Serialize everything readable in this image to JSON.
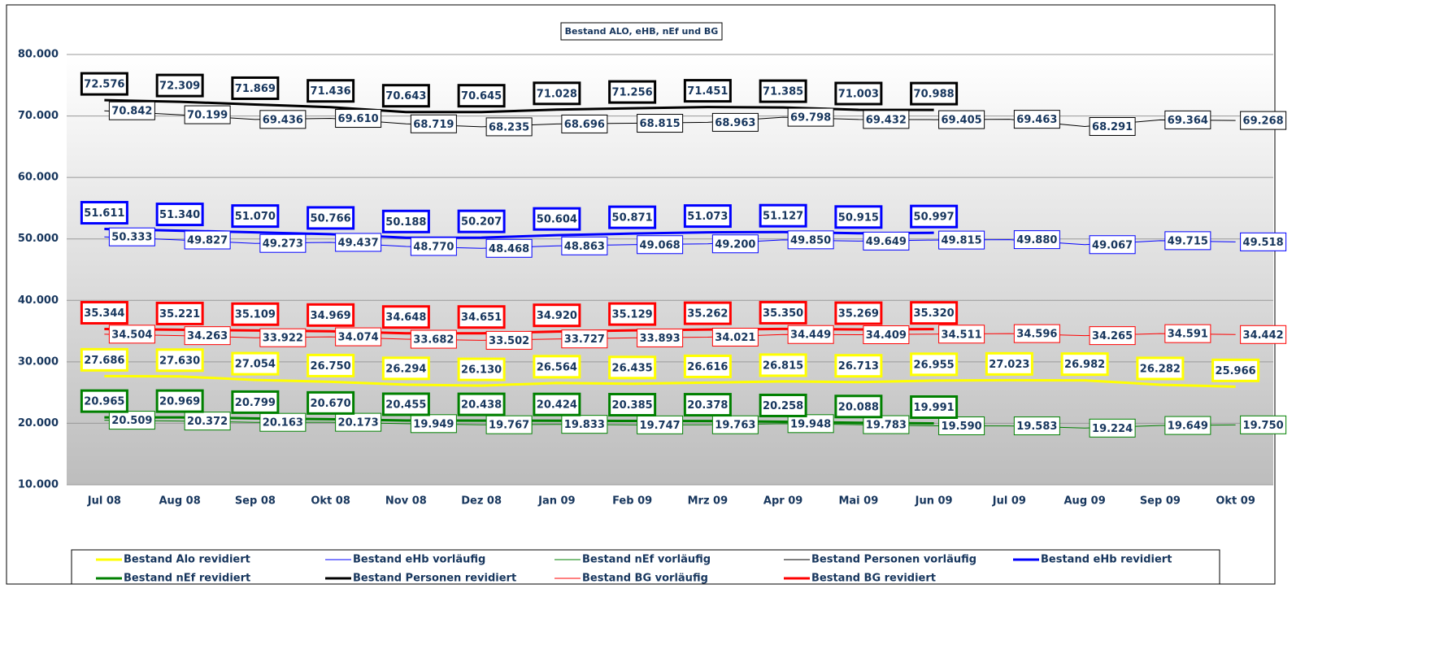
{
  "chart_data": {
    "type": "line",
    "title": "Bestand ALO, eHB, nEf und BG",
    "categories": [
      "Jul 08",
      "Aug 08",
      "Sep 08",
      "Okt 08",
      "Nov 08",
      "Dez 08",
      "Jan 09",
      "Feb 09",
      "Mrz 09",
      "Apr 09",
      "Mai 09",
      "Jun 09",
      "Jul 09",
      "Aug 09",
      "Sep 09",
      "Okt 09"
    ],
    "ylim": [
      10000,
      80000
    ],
    "yticks": [
      {
        "value": 10000,
        "label": "10.000"
      },
      {
        "value": 20000,
        "label": "20.000"
      },
      {
        "value": 30000,
        "label": "30.000"
      },
      {
        "value": 40000,
        "label": "40.000"
      },
      {
        "value": 50000,
        "label": "50.000"
      },
      {
        "value": 60000,
        "label": "60.000"
      },
      {
        "value": 70000,
        "label": "70.000"
      },
      {
        "value": 80000,
        "label": "80.000"
      }
    ],
    "grid": true,
    "series": [
      {
        "name": "Bestand Alo revidiert",
        "color": "#ffff00",
        "linewidth": 3,
        "values": [
          27686,
          27630,
          27054,
          26750,
          26294,
          26130,
          26564,
          26435,
          26616,
          26815,
          26713,
          26955,
          27023,
          26982,
          26282,
          25966
        ],
        "value_labels": [
          "27.686",
          "27.630",
          "27.054",
          "26.750",
          "26.294",
          "26.130",
          "26.564",
          "26.435",
          "26.616",
          "26.815",
          "26.713",
          "26.955",
          "27.023",
          "26.982",
          "26.282",
          "25.966"
        ]
      },
      {
        "name": "Bestand eHb vorläufig",
        "color": "#0000ff",
        "linewidth": 1,
        "values": [
          50333,
          49827,
          49273,
          49437,
          48770,
          48468,
          48863,
          49068,
          49200,
          49850,
          49649,
          49815,
          49880,
          49067,
          49715,
          49518
        ],
        "value_labels": [
          "50.333",
          "49.827",
          "49.273",
          "49.437",
          "48.770",
          "48.468",
          "48.863",
          "49.068",
          "49.200",
          "49.850",
          "49.649",
          "49.815",
          "49.880",
          "49.067",
          "49.715",
          "49.518"
        ]
      },
      {
        "name": "Bestand nEf vorläufig",
        "color": "#008000",
        "linewidth": 1,
        "values": [
          20509,
          20372,
          20163,
          20173,
          19949,
          19767,
          19833,
          19747,
          19763,
          19948,
          19783,
          19590,
          19583,
          19224,
          19649,
          19750
        ],
        "value_labels": [
          "20.509",
          "20.372",
          "20.163",
          "20.173",
          "19.949",
          "19.767",
          "19.833",
          "19.747",
          "19.763",
          "19.948",
          "19.783",
          "19.590",
          "19.583",
          "19.224",
          "19.649",
          "19.750"
        ]
      },
      {
        "name": "Bestand Personen vorläufig",
        "color": "#000000",
        "linewidth": 1,
        "values": [
          70842,
          70199,
          69436,
          69610,
          68719,
          68235,
          68696,
          68815,
          68963,
          69798,
          69432,
          69405,
          69463,
          68291,
          69364,
          69268
        ],
        "value_labels": [
          "70.842",
          "70.199",
          "69.436",
          "69.610",
          "68.719",
          "68.235",
          "68.696",
          "68.815",
          "68.963",
          "69.798",
          "69.432",
          "69.405",
          "69.463",
          "68.291",
          "69.364",
          "69.268"
        ]
      },
      {
        "name": "Bestand eHb revidiert",
        "color": "#0000ff",
        "linewidth": 3,
        "values": [
          51611,
          51340,
          51070,
          50766,
          50188,
          50207,
          50604,
          50871,
          51073,
          51127,
          50915,
          50997,
          null,
          null,
          null,
          null
        ],
        "value_labels": [
          "51.611",
          "51.340",
          "51.070",
          "50.766",
          "50.188",
          "50.207",
          "50.604",
          "50.871",
          "51.073",
          "51.127",
          "50.915",
          "50.997",
          null,
          null,
          null,
          null
        ]
      },
      {
        "name": "Bestand nEf revidiert",
        "color": "#008000",
        "linewidth": 3,
        "values": [
          20965,
          20969,
          20799,
          20670,
          20455,
          20438,
          20424,
          20385,
          20378,
          20258,
          20088,
          19991,
          null,
          null,
          null,
          null
        ],
        "value_labels": [
          "20.965",
          "20.969",
          "20.799",
          "20.670",
          "20.455",
          "20.438",
          "20.424",
          "20.385",
          "20.378",
          "20.258",
          "20.088",
          "19.991",
          null,
          null,
          null,
          null
        ]
      },
      {
        "name": "Bestand Personen revidiert",
        "color": "#000000",
        "linewidth": 3,
        "values": [
          72576,
          72309,
          71869,
          71436,
          70643,
          70645,
          71028,
          71256,
          71451,
          71385,
          71003,
          70988,
          null,
          null,
          null,
          null
        ],
        "value_labels": [
          "72.576",
          "72.309",
          "71.869",
          "71.436",
          "70.643",
          "70.645",
          "71.028",
          "71.256",
          "71.451",
          "71.385",
          "71.003",
          "70.988",
          null,
          null,
          null,
          null
        ]
      },
      {
        "name": "Bestand BG vorläufig",
        "color": "#ff0000",
        "linewidth": 1,
        "values": [
          34504,
          34263,
          33922,
          34074,
          33682,
          33502,
          33727,
          33893,
          34021,
          34449,
          34409,
          34511,
          34596,
          34265,
          34591,
          34442
        ],
        "value_labels": [
          "34.504",
          "34.263",
          "33.922",
          "34.074",
          "33.682",
          "33.502",
          "33.727",
          "33.893",
          "34.021",
          "34.449",
          "34.409",
          "34.511",
          "34.596",
          "34.265",
          "34.591",
          "34.442"
        ]
      },
      {
        "name": "Bestand BG revidiert",
        "color": "#ff0000",
        "linewidth": 3,
        "values": [
          35344,
          35221,
          35109,
          34969,
          34648,
          34651,
          34920,
          35129,
          35262,
          35350,
          35269,
          35320,
          null,
          null,
          null,
          null
        ],
        "value_labels": [
          "35.344",
          "35.221",
          "35.109",
          "34.969",
          "34.648",
          "34.651",
          "34.920",
          "35.129",
          "35.262",
          "35.350",
          "35.269",
          "35.320",
          null,
          null,
          null,
          null
        ]
      }
    ]
  }
}
